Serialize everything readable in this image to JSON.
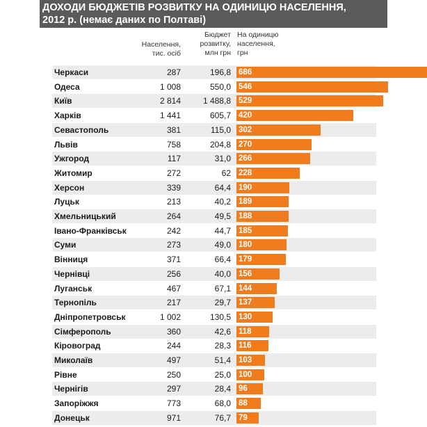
{
  "header": {
    "line1": "ДОХОДИ БЮДЖЕТІВ РОЗВИТКУ НА ОДИНИЦЮ НАСЕЛЕННЯ,",
    "line2": "2012 р. (немає даних по Полтаві)"
  },
  "columns": {
    "population": [
      "Населення,",
      "тис. осіб"
    ],
    "budget": [
      "Бюджет",
      "розвитку,",
      "млн грн"
    ],
    "per_capita": [
      "На одиницю",
      "населення,",
      "грн"
    ]
  },
  "colors": {
    "bar": "#f07c1e",
    "header_bg": "#5a5a5a",
    "stripe": "#ececec"
  },
  "chart_data": {
    "type": "bar",
    "orientation": "horizontal",
    "title": "ДОХОДИ БЮДЖЕТІВ РОЗВИТКУ НА ОДИНИЦЮ НАСЕЛЕННЯ, 2012 р. (немає даних по Полтаві)",
    "xlabel": "",
    "ylabel": "",
    "xlim": [
      0,
      686
    ],
    "grid": false,
    "rows": [
      {
        "city": "Черкаси",
        "population": "287",
        "budget": "196,8",
        "per_capita": 686
      },
      {
        "city": "Одеса",
        "population": "1 008",
        "budget": "550,0",
        "per_capita": 546
      },
      {
        "city": "Київ",
        "population": "2 814",
        "budget": "1 488,8",
        "per_capita": 529
      },
      {
        "city": "Харків",
        "population": "1 441",
        "budget": "605,7",
        "per_capita": 420
      },
      {
        "city": "Севастополь",
        "population": "381",
        "budget": "115,0",
        "per_capita": 302
      },
      {
        "city": "Львів",
        "population": "758",
        "budget": "204,8",
        "per_capita": 270
      },
      {
        "city": "Ужгород",
        "population": "117",
        "budget": "31,0",
        "per_capita": 266
      },
      {
        "city": "Житомир",
        "population": "272",
        "budget": "62",
        "per_capita": 228
      },
      {
        "city": "Херсон",
        "population": "339",
        "budget": "64,4",
        "per_capita": 190
      },
      {
        "city": "Луцьк",
        "population": "213",
        "budget": "40,2",
        "per_capita": 189
      },
      {
        "city": "Хмельницький",
        "population": "264",
        "budget": "49,5",
        "per_capita": 188
      },
      {
        "city": "Івано-Франківськ",
        "population": "242",
        "budget": "44,7",
        "per_capita": 185
      },
      {
        "city": "Суми",
        "population": "273",
        "budget": "49,0",
        "per_capita": 180
      },
      {
        "city": "Вінниця",
        "population": "371",
        "budget": "66,4",
        "per_capita": 179
      },
      {
        "city": "Чернівці",
        "population": "256",
        "budget": "40,0",
        "per_capita": 156
      },
      {
        "city": "Луганськ",
        "population": "467",
        "budget": "67,1",
        "per_capita": 144
      },
      {
        "city": "Тернопіль",
        "population": "217",
        "budget": "29,7",
        "per_capita": 137
      },
      {
        "city": "Дніпропетровськ",
        "population": "1 002",
        "budget": "130,5",
        "per_capita": 130
      },
      {
        "city": "Сімферополь",
        "population": "360",
        "budget": "42,6",
        "per_capita": 118
      },
      {
        "city": "Кіровоград",
        "population": "244",
        "budget": "28,3",
        "per_capita": 116
      },
      {
        "city": "Миколаїв",
        "population": "497",
        "budget": "51,4",
        "per_capita": 103
      },
      {
        "city": "Рівне",
        "population": "250",
        "budget": "25,0",
        "per_capita": 100
      },
      {
        "city": "Чернігів",
        "population": "297",
        "budget": "28,4",
        "per_capita": 96
      },
      {
        "city": "Запоріжжя",
        "population": "773",
        "budget": "68,0",
        "per_capita": 88
      },
      {
        "city": "Донецьк",
        "population": "971",
        "budget": "76,7",
        "per_capita": 79
      }
    ]
  }
}
